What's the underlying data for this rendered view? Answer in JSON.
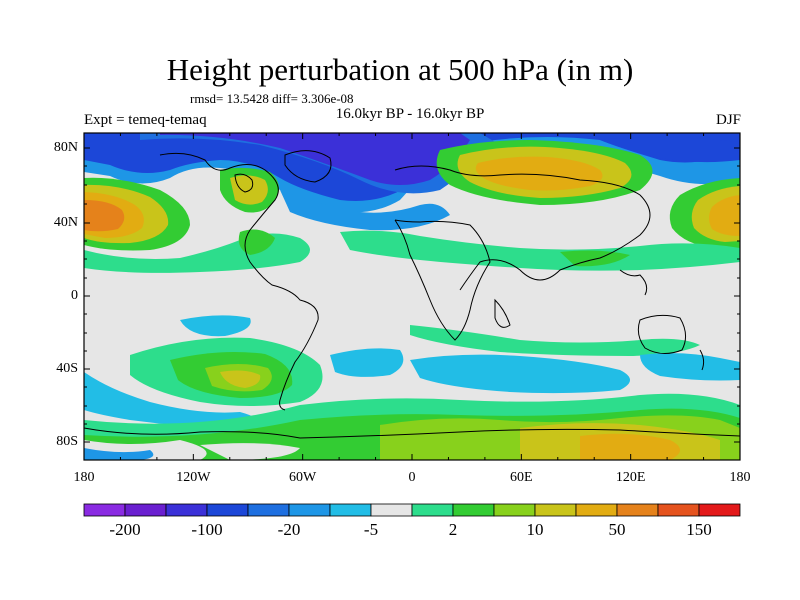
{
  "title": "Height perturbation at 500 hPa (in m)",
  "stats": "rmsd= 13.5428 diff= 3.306e-08",
  "experiment": "Expt = temeq-temaq",
  "period": "16.0kyr BP - 16.0kyr BP",
  "season": "DJF",
  "lat_ticks": [
    "80N",
    "40N",
    "0",
    "40S",
    "80S"
  ],
  "lon_ticks": [
    "180",
    "120W",
    "60W",
    "0",
    "60E",
    "120E",
    "180"
  ],
  "colorbar": {
    "colors": [
      "#8a2be2",
      "#6a1fd0",
      "#3b30d8",
      "#1c47d8",
      "#1e6fe0",
      "#1e96e6",
      "#22bde6",
      "#e6e6e6",
      "#2ddd8c",
      "#33cc33",
      "#88d11c",
      "#c9c41a",
      "#e2ac12",
      "#e5821b",
      "#e5531e",
      "#e3191a"
    ],
    "labels": [
      "-200",
      "-100",
      "-20",
      "-5",
      "2",
      "10",
      "50",
      "150"
    ]
  }
}
